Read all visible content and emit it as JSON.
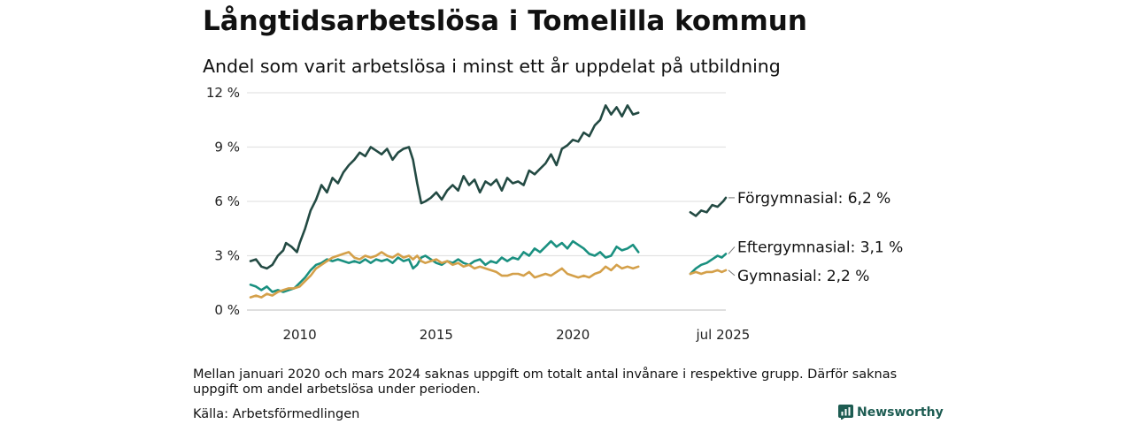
{
  "title": "Långtidsarbetslösa i Tomelilla kommun",
  "subtitle": "Andel som varit arbetslösa i minst ett år uppdelat på utbildning",
  "note": "Mellan januari 2020 och mars 2024 saknas uppgift om totalt antal invånare i respektive grupp. Därför saknas uppgift om andel arbetslösa under perioden.",
  "source": "Källa: Arbetsförmedlingen",
  "brand": "Newsworthy",
  "chart_data": {
    "type": "line",
    "y_ticks": [
      0,
      3,
      6,
      9,
      12
    ],
    "y_tick_labels": [
      "0 %",
      "3 %",
      "6 %",
      "9 %",
      "12 %"
    ],
    "ylim": [
      0,
      12
    ],
    "xlim": [
      2008.2,
      2025.6
    ],
    "x_ticks": [
      2010,
      2015,
      2020,
      2025.5
    ],
    "x_tick_labels": [
      "2010",
      "2015",
      "2020",
      "jul 2025"
    ],
    "grid": "horizontal",
    "series": [
      {
        "name": "Förgymnasial",
        "end_label": "Förgymnasial: 6,2 %",
        "color": "#234a43",
        "segments": [
          [
            [
              2008.2,
              2.7
            ],
            [
              2008.4,
              2.8
            ],
            [
              2008.6,
              2.4
            ],
            [
              2008.8,
              2.3
            ],
            [
              2009.0,
              2.5
            ],
            [
              2009.2,
              3.0
            ],
            [
              2009.4,
              3.3
            ],
            [
              2009.5,
              3.7
            ],
            [
              2009.7,
              3.5
            ],
            [
              2009.9,
              3.2
            ],
            [
              2010.0,
              3.7
            ],
            [
              2010.2,
              4.5
            ],
            [
              2010.4,
              5.5
            ],
            [
              2010.6,
              6.1
            ],
            [
              2010.8,
              6.9
            ],
            [
              2011.0,
              6.5
            ],
            [
              2011.2,
              7.3
            ],
            [
              2011.4,
              7.0
            ],
            [
              2011.6,
              7.6
            ],
            [
              2011.8,
              8.0
            ],
            [
              2012.0,
              8.3
            ],
            [
              2012.2,
              8.7
            ],
            [
              2012.4,
              8.5
            ],
            [
              2012.6,
              9.0
            ],
            [
              2012.8,
              8.8
            ],
            [
              2013.0,
              8.6
            ],
            [
              2013.2,
              8.9
            ],
            [
              2013.4,
              8.3
            ],
            [
              2013.6,
              8.7
            ],
            [
              2013.8,
              8.9
            ],
            [
              2014.0,
              9.0
            ],
            [
              2014.15,
              8.3
            ],
            [
              2014.3,
              7.0
            ],
            [
              2014.45,
              5.9
            ],
            [
              2014.6,
              6.0
            ],
            [
              2014.8,
              6.2
            ],
            [
              2015.0,
              6.5
            ],
            [
              2015.2,
              6.1
            ],
            [
              2015.4,
              6.6
            ],
            [
              2015.6,
              6.9
            ],
            [
              2015.8,
              6.6
            ],
            [
              2016.0,
              7.4
            ],
            [
              2016.2,
              6.9
            ],
            [
              2016.4,
              7.2
            ],
            [
              2016.6,
              6.5
            ],
            [
              2016.8,
              7.1
            ],
            [
              2017.0,
              6.9
            ],
            [
              2017.2,
              7.2
            ],
            [
              2017.4,
              6.6
            ],
            [
              2017.6,
              7.3
            ],
            [
              2017.8,
              7.0
            ],
            [
              2018.0,
              7.1
            ],
            [
              2018.2,
              6.9
            ],
            [
              2018.4,
              7.7
            ],
            [
              2018.6,
              7.5
            ],
            [
              2018.8,
              7.8
            ],
            [
              2019.0,
              8.1
            ],
            [
              2019.2,
              8.6
            ],
            [
              2019.4,
              8.0
            ],
            [
              2019.6,
              8.9
            ],
            [
              2019.8,
              9.1
            ],
            [
              2020.0,
              9.4
            ],
            [
              2020.2,
              9.3
            ],
            [
              2020.4,
              9.8
            ],
            [
              2020.6,
              9.6
            ],
            [
              2020.8,
              10.2
            ],
            [
              2021.0,
              10.5
            ],
            [
              2021.2,
              11.3
            ],
            [
              2021.4,
              10.8
            ],
            [
              2021.6,
              11.2
            ],
            [
              2021.8,
              10.7
            ],
            [
              2022.0,
              11.3
            ],
            [
              2022.2,
              10.8
            ],
            [
              2022.4,
              10.9
            ]
          ],
          [
            [
              2024.3,
              5.4
            ],
            [
              2024.5,
              5.2
            ],
            [
              2024.7,
              5.5
            ],
            [
              2024.9,
              5.4
            ],
            [
              2025.1,
              5.8
            ],
            [
              2025.3,
              5.7
            ],
            [
              2025.5,
              6.0
            ],
            [
              2025.6,
              6.2
            ]
          ]
        ]
      },
      {
        "name": "Eftergymnasial",
        "end_label": "Eftergymnasial: 3,1 %",
        "color": "#1a9080",
        "segments": [
          [
            [
              2008.2,
              1.4
            ],
            [
              2008.4,
              1.3
            ],
            [
              2008.6,
              1.1
            ],
            [
              2008.8,
              1.3
            ],
            [
              2009.0,
              1.0
            ],
            [
              2009.2,
              1.1
            ],
            [
              2009.4,
              1.0
            ],
            [
              2009.6,
              1.1
            ],
            [
              2009.8,
              1.2
            ],
            [
              2010.0,
              1.5
            ],
            [
              2010.2,
              1.8
            ],
            [
              2010.4,
              2.2
            ],
            [
              2010.6,
              2.5
            ],
            [
              2010.8,
              2.6
            ],
            [
              2011.0,
              2.8
            ],
            [
              2011.2,
              2.7
            ],
            [
              2011.4,
              2.8
            ],
            [
              2011.6,
              2.7
            ],
            [
              2011.8,
              2.6
            ],
            [
              2012.0,
              2.7
            ],
            [
              2012.2,
              2.6
            ],
            [
              2012.4,
              2.8
            ],
            [
              2012.6,
              2.6
            ],
            [
              2012.8,
              2.8
            ],
            [
              2013.0,
              2.7
            ],
            [
              2013.2,
              2.8
            ],
            [
              2013.4,
              2.6
            ],
            [
              2013.6,
              2.9
            ],
            [
              2013.8,
              2.7
            ],
            [
              2014.0,
              2.8
            ],
            [
              2014.15,
              2.3
            ],
            [
              2014.3,
              2.5
            ],
            [
              2014.45,
              2.9
            ],
            [
              2014.6,
              3.0
            ],
            [
              2014.8,
              2.8
            ],
            [
              2015.0,
              2.6
            ],
            [
              2015.2,
              2.5
            ],
            [
              2015.4,
              2.7
            ],
            [
              2015.6,
              2.6
            ],
            [
              2015.8,
              2.8
            ],
            [
              2016.0,
              2.6
            ],
            [
              2016.2,
              2.5
            ],
            [
              2016.4,
              2.7
            ],
            [
              2016.6,
              2.8
            ],
            [
              2016.8,
              2.5
            ],
            [
              2017.0,
              2.7
            ],
            [
              2017.2,
              2.6
            ],
            [
              2017.4,
              2.9
            ],
            [
              2017.6,
              2.7
            ],
            [
              2017.8,
              2.9
            ],
            [
              2018.0,
              2.8
            ],
            [
              2018.2,
              3.2
            ],
            [
              2018.4,
              3.0
            ],
            [
              2018.6,
              3.4
            ],
            [
              2018.8,
              3.2
            ],
            [
              2019.0,
              3.5
            ],
            [
              2019.2,
              3.8
            ],
            [
              2019.4,
              3.5
            ],
            [
              2019.6,
              3.7
            ],
            [
              2019.8,
              3.4
            ],
            [
              2020.0,
              3.8
            ],
            [
              2020.2,
              3.6
            ],
            [
              2020.4,
              3.4
            ],
            [
              2020.6,
              3.1
            ],
            [
              2020.8,
              3.0
            ],
            [
              2021.0,
              3.2
            ],
            [
              2021.2,
              2.9
            ],
            [
              2021.4,
              3.0
            ],
            [
              2021.6,
              3.5
            ],
            [
              2021.8,
              3.3
            ],
            [
              2022.0,
              3.4
            ],
            [
              2022.2,
              3.6
            ],
            [
              2022.4,
              3.2
            ]
          ],
          [
            [
              2024.3,
              2.0
            ],
            [
              2024.5,
              2.3
            ],
            [
              2024.7,
              2.5
            ],
            [
              2024.9,
              2.6
            ],
            [
              2025.1,
              2.8
            ],
            [
              2025.3,
              3.0
            ],
            [
              2025.45,
              2.9
            ],
            [
              2025.6,
              3.1
            ]
          ]
        ]
      },
      {
        "name": "Gymnasial",
        "end_label": "Gymnasial: 2,2 %",
        "color": "#d4a04a",
        "segments": [
          [
            [
              2008.2,
              0.7
            ],
            [
              2008.4,
              0.8
            ],
            [
              2008.6,
              0.7
            ],
            [
              2008.8,
              0.9
            ],
            [
              2009.0,
              0.8
            ],
            [
              2009.2,
              1.0
            ],
            [
              2009.4,
              1.1
            ],
            [
              2009.6,
              1.2
            ],
            [
              2009.8,
              1.2
            ],
            [
              2010.0,
              1.3
            ],
            [
              2010.2,
              1.6
            ],
            [
              2010.4,
              1.9
            ],
            [
              2010.6,
              2.3
            ],
            [
              2010.8,
              2.5
            ],
            [
              2011.0,
              2.7
            ],
            [
              2011.2,
              2.9
            ],
            [
              2011.4,
              3.0
            ],
            [
              2011.6,
              3.1
            ],
            [
              2011.8,
              3.2
            ],
            [
              2012.0,
              2.9
            ],
            [
              2012.2,
              2.8
            ],
            [
              2012.4,
              3.0
            ],
            [
              2012.6,
              2.9
            ],
            [
              2012.8,
              3.0
            ],
            [
              2013.0,
              3.2
            ],
            [
              2013.2,
              3.0
            ],
            [
              2013.4,
              2.9
            ],
            [
              2013.6,
              3.1
            ],
            [
              2013.8,
              2.9
            ],
            [
              2014.0,
              3.0
            ],
            [
              2014.15,
              2.8
            ],
            [
              2014.3,
              3.0
            ],
            [
              2014.45,
              2.7
            ],
            [
              2014.6,
              2.6
            ],
            [
              2014.8,
              2.7
            ],
            [
              2015.0,
              2.8
            ],
            [
              2015.2,
              2.6
            ],
            [
              2015.4,
              2.7
            ],
            [
              2015.6,
              2.5
            ],
            [
              2015.8,
              2.6
            ],
            [
              2016.0,
              2.4
            ],
            [
              2016.2,
              2.5
            ],
            [
              2016.4,
              2.3
            ],
            [
              2016.6,
              2.4
            ],
            [
              2016.8,
              2.3
            ],
            [
              2017.0,
              2.2
            ],
            [
              2017.2,
              2.1
            ],
            [
              2017.4,
              1.9
            ],
            [
              2017.6,
              1.9
            ],
            [
              2017.8,
              2.0
            ],
            [
              2018.0,
              2.0
            ],
            [
              2018.2,
              1.9
            ],
            [
              2018.4,
              2.1
            ],
            [
              2018.6,
              1.8
            ],
            [
              2018.8,
              1.9
            ],
            [
              2019.0,
              2.0
            ],
            [
              2019.2,
              1.9
            ],
            [
              2019.4,
              2.1
            ],
            [
              2019.6,
              2.3
            ],
            [
              2019.8,
              2.0
            ],
            [
              2020.0,
              1.9
            ],
            [
              2020.2,
              1.8
            ],
            [
              2020.4,
              1.9
            ],
            [
              2020.6,
              1.8
            ],
            [
              2020.8,
              2.0
            ],
            [
              2021.0,
              2.1
            ],
            [
              2021.2,
              2.4
            ],
            [
              2021.4,
              2.2
            ],
            [
              2021.6,
              2.5
            ],
            [
              2021.8,
              2.3
            ],
            [
              2022.0,
              2.4
            ],
            [
              2022.2,
              2.3
            ],
            [
              2022.4,
              2.4
            ]
          ],
          [
            [
              2024.3,
              2.0
            ],
            [
              2024.5,
              2.1
            ],
            [
              2024.7,
              2.0
            ],
            [
              2024.9,
              2.1
            ],
            [
              2025.1,
              2.1
            ],
            [
              2025.3,
              2.2
            ],
            [
              2025.45,
              2.1
            ],
            [
              2025.6,
              2.2
            ]
          ]
        ]
      }
    ]
  }
}
